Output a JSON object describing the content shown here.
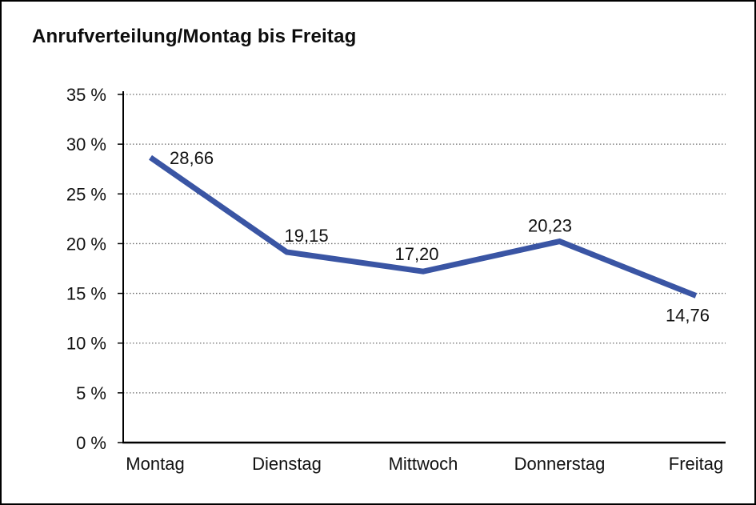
{
  "title": "Anrufverteilung/Montag bis Freitag",
  "colors": {
    "line": "#3A55A4",
    "grid": "#6b6b6b",
    "axis": "#000000",
    "text": "#111111"
  },
  "chart_data": {
    "type": "line",
    "title": "Anrufverteilung/Montag bis Freitag",
    "categories": [
      "Montag",
      "Dienstag",
      "Mittwoch",
      "Donnerstag",
      "Freitag"
    ],
    "values": [
      28.66,
      19.15,
      17.2,
      20.23,
      14.76
    ],
    "point_labels": [
      "28,66",
      "19,15",
      "17,20",
      "20,23",
      "14,76"
    ],
    "y_tick_labels": [
      "0 %",
      "5 %",
      "10 %",
      "15 %",
      "20 %",
      "25 %",
      "30 %",
      "35 %"
    ],
    "ylim": [
      0,
      35
    ],
    "y_step": 5,
    "xlabel": "",
    "ylabel": "",
    "legend": "none",
    "grid": "horizontal-dotted"
  }
}
